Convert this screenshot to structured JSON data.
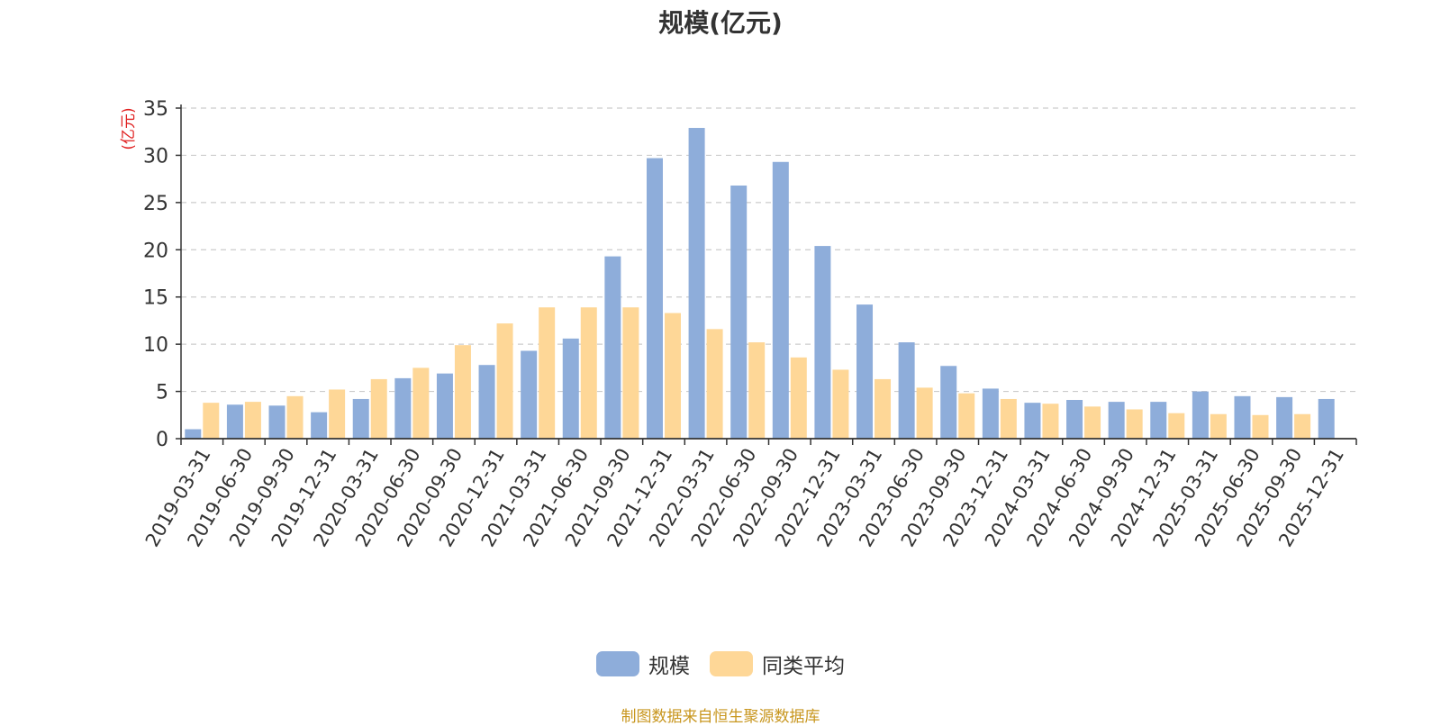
{
  "colors": {
    "series_1": "#8eadda",
    "series_2": "#fed797",
    "axis": "#333333",
    "grid": "#cccccc",
    "unit_label": "#e02020",
    "source": "#c8961e"
  },
  "source_note": "制图数据来自恒生聚源数据库",
  "chart_data": {
    "type": "bar",
    "title": "规模(亿元)",
    "ylabel": "(亿元)",
    "xlabel": "",
    "ylim": [
      0,
      35
    ],
    "yticks": [
      0,
      5,
      10,
      15,
      20,
      25,
      30,
      35
    ],
    "grid": true,
    "legend_position": "bottom-center",
    "categories": [
      "2019-03-31",
      "2019-06-30",
      "2019-09-30",
      "2019-12-31",
      "2020-03-31",
      "2020-06-30",
      "2020-09-30",
      "2020-12-31",
      "2021-03-31",
      "2021-06-30",
      "2021-09-30",
      "2021-12-31",
      "2022-03-31",
      "2022-06-30",
      "2022-09-30",
      "2022-12-31",
      "2023-03-31",
      "2023-06-30",
      "2023-09-30",
      "2023-12-31",
      "2024-03-31",
      "2024-06-30",
      "2024-09-30",
      "2024-12-31",
      "2025-03-31",
      "2025-06-30",
      "2025-09-30",
      "2025-12-31"
    ],
    "series": [
      {
        "name": "规模",
        "values": [
          1.0,
          3.6,
          3.5,
          2.8,
          4.2,
          6.4,
          6.9,
          7.8,
          9.3,
          10.6,
          19.3,
          29.7,
          32.9,
          26.8,
          29.3,
          20.4,
          14.2,
          10.2,
          7.7,
          5.3,
          3.8,
          4.1,
          3.9,
          3.9,
          5.0,
          4.5,
          4.4,
          4.2
        ]
      },
      {
        "name": "同类平均",
        "values": [
          3.8,
          3.9,
          4.5,
          5.2,
          6.3,
          7.5,
          9.9,
          12.2,
          13.9,
          13.9,
          13.9,
          13.3,
          11.6,
          10.2,
          8.6,
          7.3,
          6.3,
          5.4,
          4.8,
          4.2,
          3.7,
          3.4,
          3.1,
          2.7,
          2.6,
          2.5,
          2.6,
          null
        ]
      }
    ]
  }
}
